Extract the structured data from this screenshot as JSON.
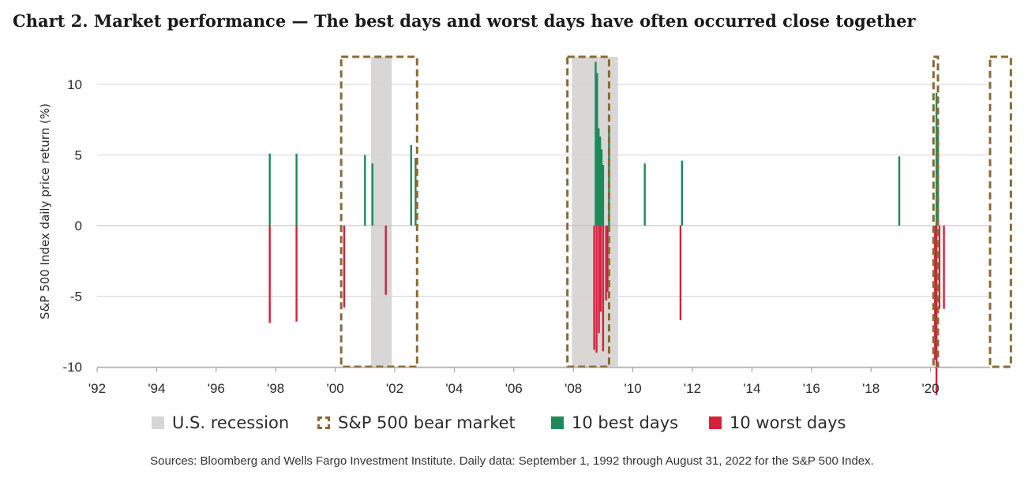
{
  "title": "Chart 2. Market performance — The best days and worst days have often occurred close together",
  "source": "Sources: Bloomberg and Wells Fargo Investment Institute. Daily data: September 1, 1992 through August 31, 2022 for the S&P 500 Index.",
  "colors": {
    "best": "#1e8a5a",
    "worst": "#d6203a",
    "recession": "#d9d6d6",
    "bear": "#8a6a35",
    "grid": "#d4d4d4",
    "axis": "#9a9a9a",
    "text": "#2b2b2b"
  },
  "legend": [
    {
      "key": "recession",
      "label": "U.S. recession",
      "icon": "recession-swatch"
    },
    {
      "key": "bear",
      "label": "S&P 500 bear market",
      "icon": "bear-market-swatch"
    },
    {
      "key": "best",
      "label": "10 best days",
      "icon": "best-days-swatch"
    },
    {
      "key": "worst",
      "label": "10 worst days",
      "icon": "worst-days-swatch"
    }
  ],
  "chart_data": {
    "type": "bar",
    "title": "Chart 2. Market performance — The best days and worst days have often occurred close together",
    "xlabel": "",
    "ylabel": "S&P 500 Index daily price return (%)",
    "xlim": [
      1992.0,
      2022.0
    ],
    "ylim": [
      -10,
      12
    ],
    "yticks": [
      10,
      5,
      0,
      -5,
      -10
    ],
    "ytick_labels": [
      "10",
      "5",
      "0",
      "-5",
      "-10"
    ],
    "xticks": [
      1992,
      1994,
      1996,
      1998,
      2000,
      2002,
      2004,
      2006,
      2008,
      2010,
      2012,
      2014,
      2016,
      2018,
      2020
    ],
    "xtick_labels": [
      "'92",
      "'94",
      "'96",
      "'98",
      "'00",
      "'02",
      "'04",
      "'06",
      "'08",
      "'10",
      "'12",
      "'14",
      "'16",
      "'18",
      "'20"
    ],
    "recessions": [
      {
        "start": 2001.2,
        "end": 2001.9
      },
      {
        "start": 2007.95,
        "end": 2009.5
      }
    ],
    "bear_markets": [
      {
        "start": 2000.2,
        "end": 2002.75
      },
      {
        "start": 2007.8,
        "end": 2009.2
      },
      {
        "start": 2020.1,
        "end": 2020.25
      },
      {
        "start": 2022.0,
        "end": 2022.7
      }
    ],
    "series": [
      {
        "name": "10 best days",
        "points": [
          {
            "x": 1997.8,
            "y": 5.1
          },
          {
            "x": 1998.7,
            "y": 5.1
          },
          {
            "x": 2001.0,
            "y": 5.0
          },
          {
            "x": 2001.25,
            "y": 4.4
          },
          {
            "x": 2002.55,
            "y": 5.7
          },
          {
            "x": 2002.7,
            "y": 4.8
          },
          {
            "x": 2008.75,
            "y": 11.6
          },
          {
            "x": 2008.8,
            "y": 10.8
          },
          {
            "x": 2008.85,
            "y": 6.9
          },
          {
            "x": 2008.9,
            "y": 6.3
          },
          {
            "x": 2008.95,
            "y": 5.4
          },
          {
            "x": 2009.0,
            "y": 4.3
          },
          {
            "x": 2009.2,
            "y": 7.1
          },
          {
            "x": 2010.4,
            "y": 4.4
          },
          {
            "x": 2011.65,
            "y": 4.6
          },
          {
            "x": 2018.95,
            "y": 4.9
          },
          {
            "x": 2020.2,
            "y": 9.4
          },
          {
            "x": 2020.25,
            "y": 7.0
          }
        ]
      },
      {
        "name": "10 worst days",
        "points": [
          {
            "x": 1997.8,
            "y": -6.9
          },
          {
            "x": 1998.7,
            "y": -6.8
          },
          {
            "x": 2000.3,
            "y": -5.8
          },
          {
            "x": 2001.7,
            "y": -4.9
          },
          {
            "x": 2008.7,
            "y": -8.8
          },
          {
            "x": 2008.78,
            "y": -9.0
          },
          {
            "x": 2008.86,
            "y": -7.6
          },
          {
            "x": 2008.92,
            "y": -6.1
          },
          {
            "x": 2009.0,
            "y": -8.9
          },
          {
            "x": 2009.1,
            "y": -5.3
          },
          {
            "x": 2009.15,
            "y": -4.7
          },
          {
            "x": 2011.6,
            "y": -6.7
          },
          {
            "x": 2020.15,
            "y": -9.5
          },
          {
            "x": 2020.2,
            "y": -12.0
          },
          {
            "x": 2020.3,
            "y": -5.9
          },
          {
            "x": 2020.45,
            "y": -5.9
          }
        ]
      }
    ]
  }
}
